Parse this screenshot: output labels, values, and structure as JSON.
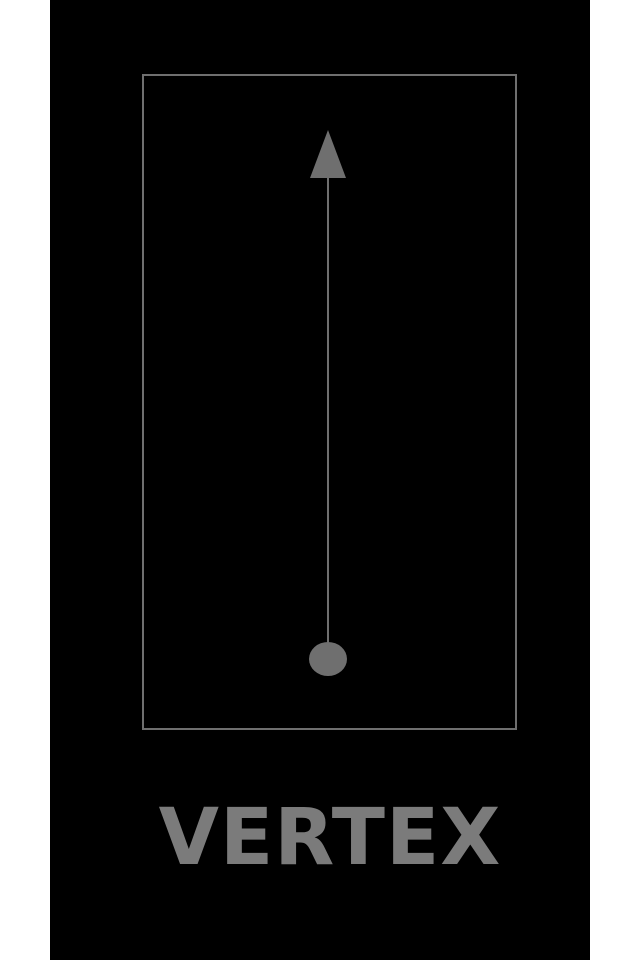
{
  "screen": {
    "label": "VERTEX",
    "colors": {
      "background": "#000000",
      "outer_background": "#ffffff",
      "frame_stroke": "#6f6f6f",
      "arrow": "#6f6f6f",
      "label": "#7b7b7b"
    },
    "icons": {
      "main_icon": "vertical-arrow-with-origin-dot-icon"
    }
  }
}
